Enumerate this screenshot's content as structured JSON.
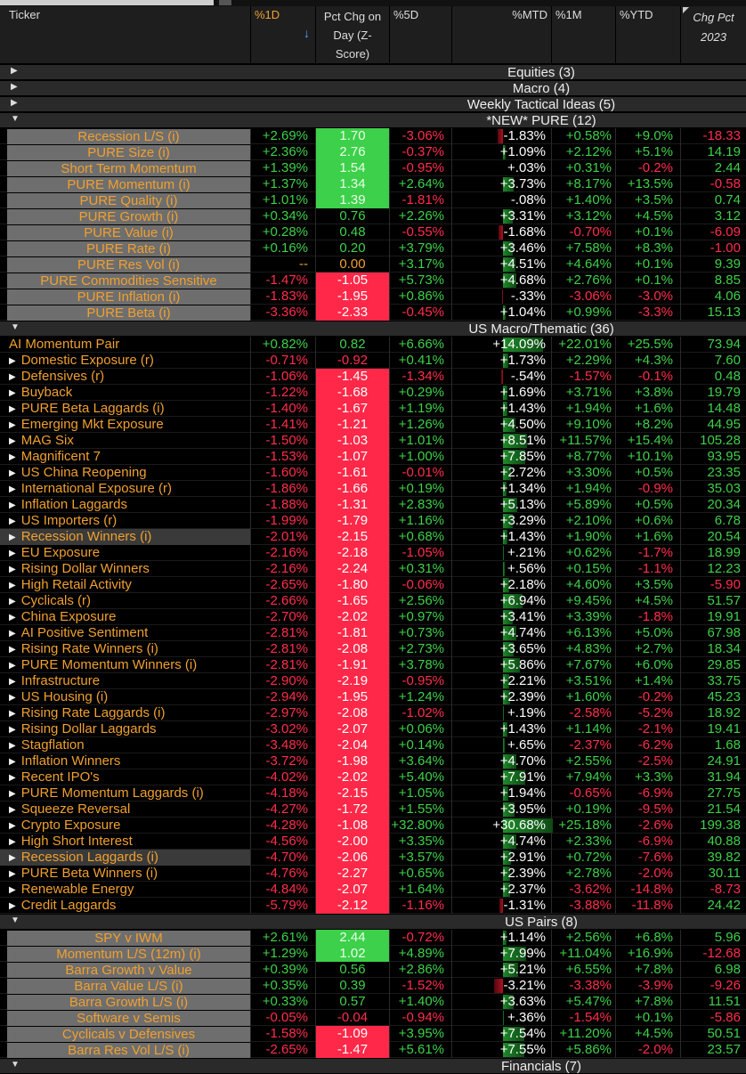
{
  "columns": {
    "ticker": "Ticker",
    "d1": "%1D",
    "sort_arrow": "↓",
    "z": "Pct Chg on Day (Z-Score)",
    "d5": "%5D",
    "mtd": "%MTD",
    "m1": "%1M",
    "ytd": "%YTD",
    "chg": "Chg Pct 2023"
  },
  "colors": {
    "positive": "#3fd04a",
    "negative": "#ff2e4a",
    "ticker": "#f0a030",
    "z_positive_bg": "#3dd04a",
    "z_negative_bg": "#ff2848"
  },
  "collapsed_groups": [
    {
      "label": "Equities (3)",
      "icon": "triangle-right-icon"
    },
    {
      "label": "Macro (4)",
      "icon": "triangle-right-icon"
    },
    {
      "label": "Weekly Tactical Ideas (5)",
      "icon": "triangle-right-icon"
    }
  ],
  "sections": [
    {
      "label": "*NEW* PURE (12)",
      "icon": "triangle-down-icon",
      "style": "gray",
      "rows": [
        [
          "Recession L/S (i)",
          "+2.69%",
          "1.70",
          "-3.06%",
          "-1.83%",
          "+0.58%",
          "+9.0%",
          "-18.33"
        ],
        [
          "PURE Size (i)",
          "+2.36%",
          "2.76",
          "-0.37%",
          "+1.09%",
          "+2.12%",
          "+5.1%",
          "14.19"
        ],
        [
          "Short Term Momentum",
          "+1.39%",
          "1.54",
          "-0.95%",
          "+.03%",
          "+0.31%",
          "-0.2%",
          "2.44"
        ],
        [
          "PURE Momentum (i)",
          "+1.37%",
          "1.34",
          "+2.64%",
          "+3.73%",
          "+8.17%",
          "+13.5%",
          "-0.58"
        ],
        [
          "PURE Quality (i)",
          "+1.01%",
          "1.39",
          "-1.81%",
          "-.08%",
          "+1.40%",
          "+3.5%",
          "0.74"
        ],
        [
          "PURE Growth (i)",
          "+0.34%",
          "0.76",
          "+2.26%",
          "+3.31%",
          "+3.12%",
          "+4.5%",
          "3.12"
        ],
        [
          "PURE Value (i)",
          "+0.28%",
          "0.48",
          "-0.55%",
          "-1.68%",
          "-0.70%",
          "+0.1%",
          "-6.09"
        ],
        [
          "PURE Rate (i)",
          "+0.16%",
          "0.20",
          "+3.79%",
          "+3.46%",
          "+7.58%",
          "+8.3%",
          "-1.00"
        ],
        [
          "PURE Res Vol (i)",
          "--",
          "0.00",
          "+3.17%",
          "+4.51%",
          "+4.64%",
          "+0.1%",
          "9.39"
        ],
        [
          "PURE Commodities Sensitive",
          "-1.47%",
          "-1.05",
          "+5.73%",
          "+4.68%",
          "+2.76%",
          "+0.1%",
          "8.85"
        ],
        [
          "PURE Inflation (i)",
          "-1.83%",
          "-1.95",
          "+0.86%",
          "-.33%",
          "-3.06%",
          "-3.0%",
          "4.06"
        ],
        [
          "PURE Beta (i)",
          "-3.36%",
          "-2.33",
          "-0.45%",
          "+1.04%",
          "+0.99%",
          "-3.3%",
          "15.13"
        ]
      ]
    },
    {
      "label": "US Macro/Thematic (36)",
      "icon": "triangle-down-icon",
      "style": "list",
      "rows": [
        [
          "AI Momentum Pair",
          "+0.82%",
          "0.82",
          "+6.66%",
          "+14.09%",
          "+22.01%",
          "+25.5%",
          "73.94"
        ],
        [
          "Domestic Exposure (r)",
          "-0.71%",
          "-0.92",
          "+0.41%",
          "+1.73%",
          "+2.29%",
          "+4.3%",
          "7.60"
        ],
        [
          "Defensives (r)",
          "-1.06%",
          "-1.45",
          "-1.34%",
          "-.54%",
          "-1.57%",
          "-0.1%",
          "0.48"
        ],
        [
          "Buyback",
          "-1.22%",
          "-1.68",
          "+0.29%",
          "+1.69%",
          "+3.71%",
          "+3.8%",
          "19.79"
        ],
        [
          "PURE Beta Laggards (i)",
          "-1.40%",
          "-1.67",
          "+1.19%",
          "+1.43%",
          "+1.94%",
          "+1.6%",
          "14.48"
        ],
        [
          "Emerging Mkt Exposure",
          "-1.41%",
          "-1.21",
          "+1.26%",
          "+4.50%",
          "+9.10%",
          "+8.2%",
          "44.95"
        ],
        [
          "MAG Six",
          "-1.50%",
          "-1.03",
          "+1.01%",
          "+8.51%",
          "+11.57%",
          "+15.4%",
          "105.28"
        ],
        [
          "Magnificent 7",
          "-1.53%",
          "-1.07",
          "+1.00%",
          "+7.85%",
          "+8.77%",
          "+10.1%",
          "93.95"
        ],
        [
          "US China Reopening",
          "-1.60%",
          "-1.61",
          "-0.01%",
          "+2.72%",
          "+3.30%",
          "+0.5%",
          "23.35"
        ],
        [
          "International Exposure (r)",
          "-1.86%",
          "-1.66",
          "+0.19%",
          "+1.34%",
          "+1.94%",
          "-0.9%",
          "35.03"
        ],
        [
          "Inflation Laggards",
          "-1.88%",
          "-1.31",
          "+2.83%",
          "+5.13%",
          "+5.89%",
          "+0.5%",
          "20.34"
        ],
        [
          "US Importers (r)",
          "-1.99%",
          "-1.79",
          "+1.16%",
          "+3.29%",
          "+2.10%",
          "+0.6%",
          "6.78"
        ],
        [
          "Recession Winners (i)",
          "-2.01%",
          "-2.15",
          "+0.68%",
          "+1.43%",
          "+1.90%",
          "+1.6%",
          "20.54"
        ],
        [
          "EU Exposure",
          "-2.16%",
          "-2.18",
          "-1.05%",
          "+.21%",
          "+0.62%",
          "-1.7%",
          "18.99"
        ],
        [
          "Rising Dollar Winners",
          "-2.16%",
          "-2.24",
          "+0.31%",
          "+.56%",
          "+0.15%",
          "-1.1%",
          "12.23"
        ],
        [
          "High Retail Activity",
          "-2.65%",
          "-1.80",
          "-0.06%",
          "+2.18%",
          "+4.60%",
          "+3.5%",
          "-5.90"
        ],
        [
          "Cyclicals (r)",
          "-2.66%",
          "-1.65",
          "+2.56%",
          "+6.94%",
          "+9.45%",
          "+4.5%",
          "51.57"
        ],
        [
          "China Exposure",
          "-2.70%",
          "-2.02",
          "+0.97%",
          "+3.41%",
          "+3.39%",
          "-1.8%",
          "19.91"
        ],
        [
          "AI Positive Sentiment",
          "-2.81%",
          "-1.81",
          "+0.73%",
          "+4.74%",
          "+6.13%",
          "+5.0%",
          "67.98"
        ],
        [
          "Rising Rate Winners (i)",
          "-2.81%",
          "-2.08",
          "+2.73%",
          "+3.65%",
          "+4.83%",
          "+2.7%",
          "18.34"
        ],
        [
          "PURE Momentum Winners (i)",
          "-2.81%",
          "-1.91",
          "+3.78%",
          "+5.86%",
          "+7.67%",
          "+6.0%",
          "29.85"
        ],
        [
          "Infrastructure",
          "-2.90%",
          "-2.19",
          "-0.95%",
          "+2.21%",
          "+3.51%",
          "+1.4%",
          "33.75"
        ],
        [
          "US Housing (i)",
          "-2.94%",
          "-1.95",
          "+1.24%",
          "+2.39%",
          "+1.60%",
          "-0.2%",
          "45.23"
        ],
        [
          "Rising Rate Laggards (i)",
          "-2.97%",
          "-2.08",
          "-1.02%",
          "+.19%",
          "-2.58%",
          "-5.2%",
          "18.92"
        ],
        [
          "Rising Dollar Laggards",
          "-3.02%",
          "-2.07",
          "+0.06%",
          "+1.43%",
          "+1.14%",
          "-2.1%",
          "19.41"
        ],
        [
          "Stagflation",
          "-3.48%",
          "-2.04",
          "+0.14%",
          "+.65%",
          "-2.37%",
          "-6.2%",
          "1.68"
        ],
        [
          "Inflation Winners",
          "-3.72%",
          "-1.98",
          "+3.64%",
          "+4.70%",
          "+2.55%",
          "-2.5%",
          "24.91"
        ],
        [
          "Recent IPO's",
          "-4.02%",
          "-2.02",
          "+5.40%",
          "+7.91%",
          "+7.94%",
          "+3.3%",
          "31.94"
        ],
        [
          "PURE Momentum Laggards (i)",
          "-4.18%",
          "-2.15",
          "+1.05%",
          "+1.94%",
          "-0.65%",
          "-6.9%",
          "27.75"
        ],
        [
          "Squeeze Reversal",
          "-4.27%",
          "-1.72",
          "+1.55%",
          "+3.95%",
          "+0.19%",
          "-9.5%",
          "21.54"
        ],
        [
          "Crypto Exposure",
          "-4.28%",
          "-1.08",
          "+32.80%",
          "+30.68%",
          "+25.18%",
          "-2.6%",
          "199.38"
        ],
        [
          "High Short Interest",
          "-4.56%",
          "-2.00",
          "+3.35%",
          "+4.74%",
          "+2.33%",
          "-6.9%",
          "40.88"
        ],
        [
          "Recession Laggards (i)",
          "-4.70%",
          "-2.06",
          "+3.57%",
          "+2.91%",
          "+0.72%",
          "-7.6%",
          "39.82"
        ],
        [
          "PURE Beta Winners (i)",
          "-4.76%",
          "-2.27",
          "+0.65%",
          "+2.39%",
          "+2.78%",
          "-2.0%",
          "30.11"
        ],
        [
          "Renewable Energy",
          "-4.84%",
          "-2.07",
          "+1.64%",
          "+2.37%",
          "-3.62%",
          "-14.8%",
          "-8.73"
        ],
        [
          "Credit Laggards",
          "-5.79%",
          "-2.12",
          "-1.16%",
          "-1.31%",
          "-3.88%",
          "-11.8%",
          "24.42"
        ]
      ]
    },
    {
      "label": "US Pairs (8)",
      "icon": "triangle-down-icon",
      "style": "gray",
      "rows": [
        [
          "SPY v IWM",
          "+2.61%",
          "2.44",
          "-0.72%",
          "+1.14%",
          "+2.56%",
          "+6.8%",
          "5.96"
        ],
        [
          "Momentum L/S (12m) (i)",
          "+1.29%",
          "1.02",
          "+4.89%",
          "+7.99%",
          "+11.04%",
          "+16.9%",
          "-12.68"
        ],
        [
          "Barra Growth v Value",
          "+0.39%",
          "0.56",
          "+2.86%",
          "+5.21%",
          "+6.55%",
          "+7.8%",
          "6.98"
        ],
        [
          "Barra Value L/S (i)",
          "+0.35%",
          "0.39",
          "-1.52%",
          "-3.21%",
          "-3.38%",
          "-3.9%",
          "-9.26"
        ],
        [
          "Barra Growth L/S (i)",
          "+0.33%",
          "0.57",
          "+1.40%",
          "+3.63%",
          "+5.47%",
          "+7.8%",
          "11.51"
        ],
        [
          "Software v Semis",
          "-0.05%",
          "-0.04",
          "-0.94%",
          "+.36%",
          "-1.54%",
          "+0.1%",
          "-5.86"
        ],
        [
          "Cyclicals v Defensives",
          "-1.58%",
          "-1.09",
          "+3.95%",
          "+7.54%",
          "+11.20%",
          "+4.5%",
          "50.51"
        ],
        [
          "Barra Res Vol L/S (i)",
          "-2.65%",
          "-1.47",
          "+5.61%",
          "+7.55%",
          "+5.86%",
          "-2.0%",
          "23.57"
        ]
      ]
    },
    {
      "label": "Financials (7)",
      "icon": "triangle-down-icon",
      "style": "gray",
      "rows": []
    }
  ]
}
